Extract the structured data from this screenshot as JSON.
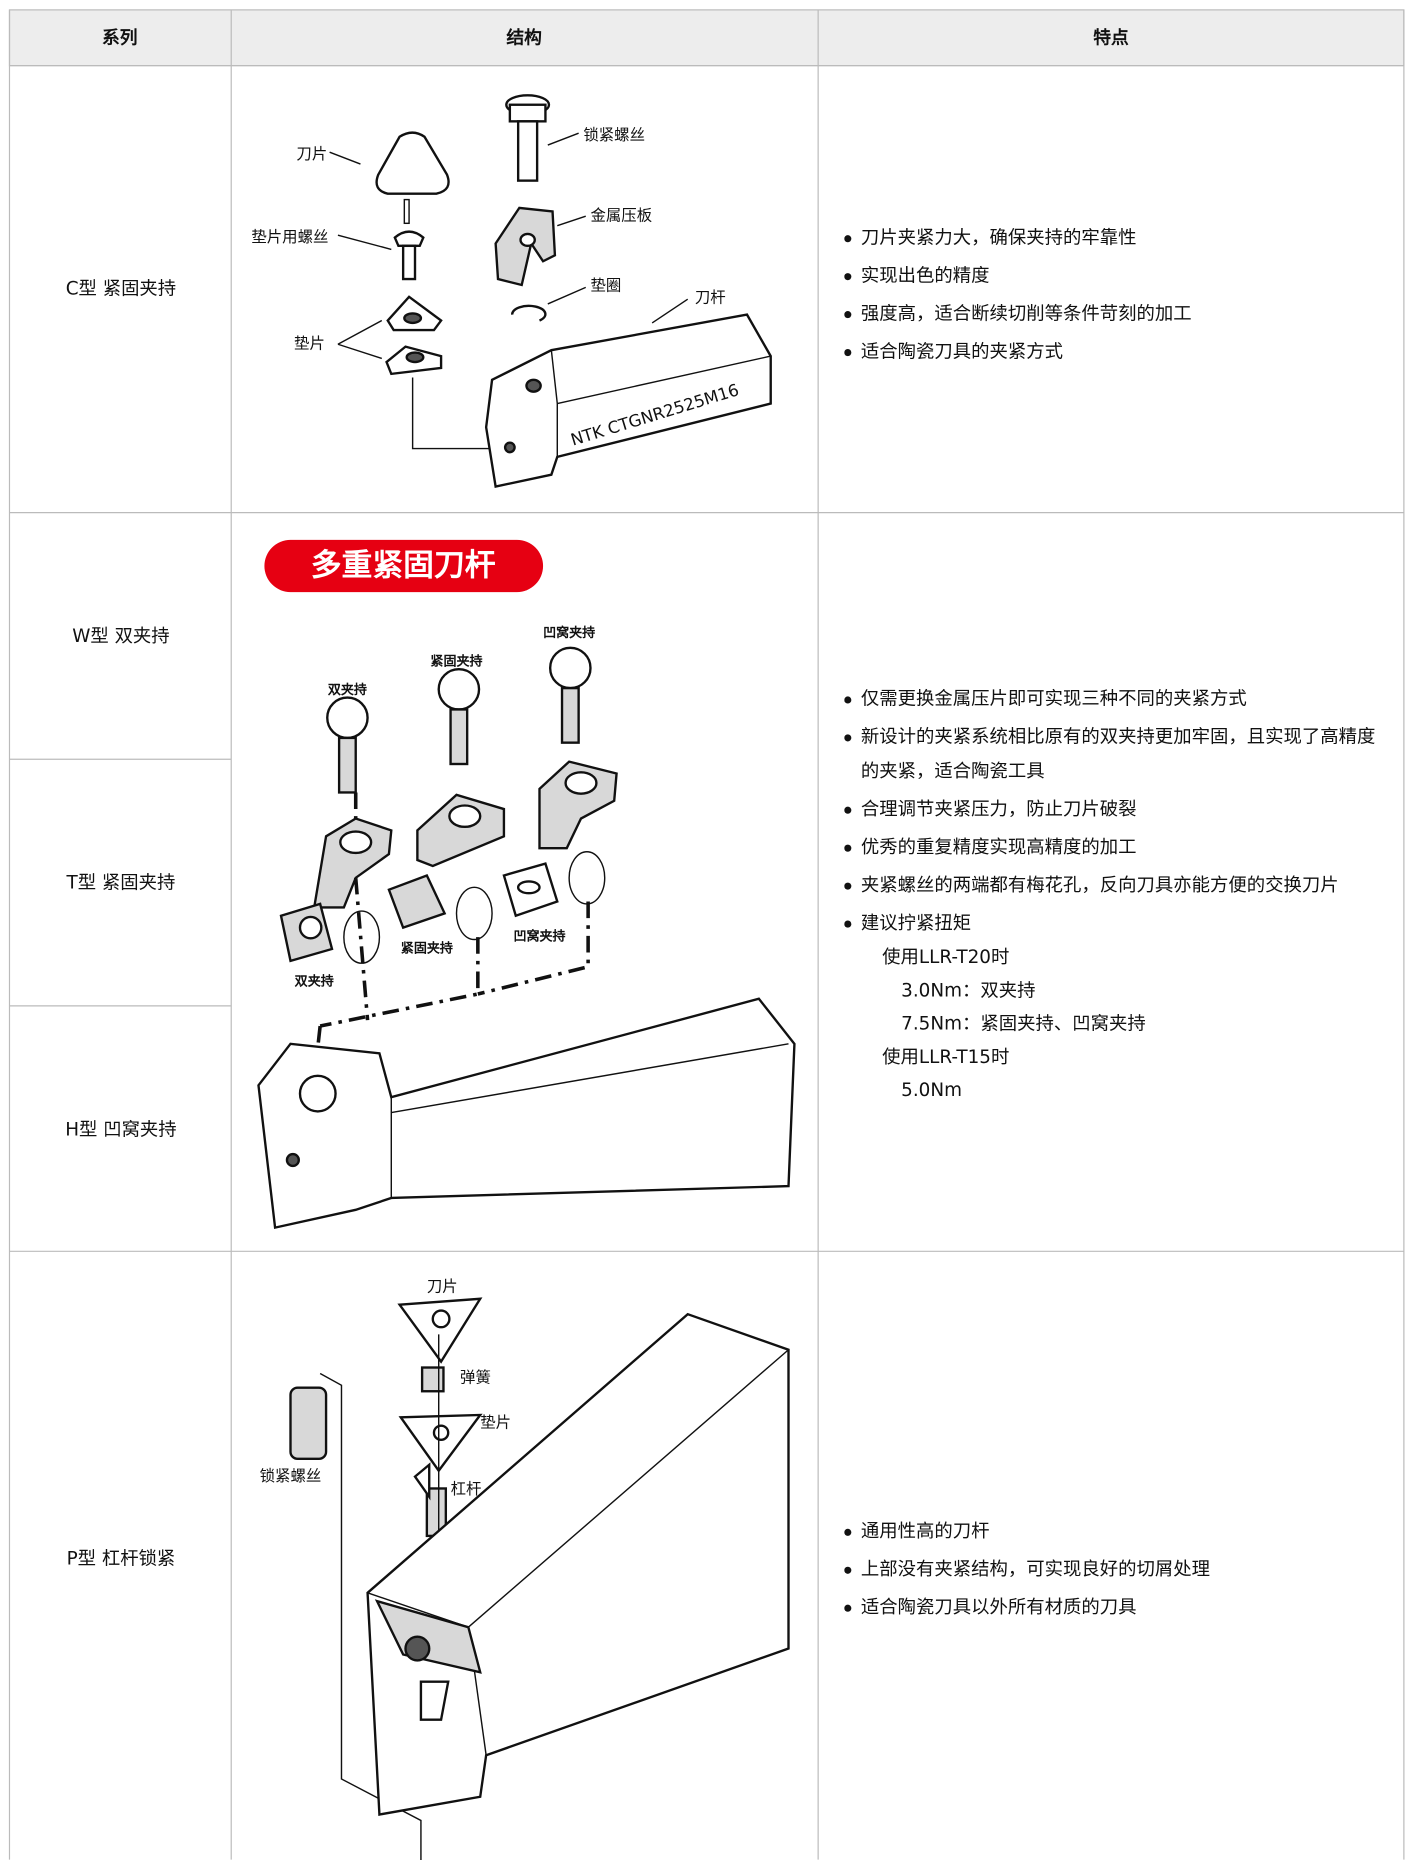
{
  "table": {
    "headers": [
      "系列",
      "结构",
      "特点"
    ],
    "rows": [
      {
        "series": [
          "C型 紧固夹持"
        ],
        "diagram": {
          "labels": [
            "刀片",
            "垫片用螺丝",
            "垫片",
            "锁紧螺丝",
            "金属压板",
            "垫圈",
            "刀杆"
          ],
          "marking": "NTK CTGNR2525M16"
        },
        "features": [
          "刀片夹紧力大，确保夹持的牢靠性",
          "实现出色的精度",
          "强度高，适合断续切削等条件苛刻的加工",
          "适合陶瓷刀具的夹紧方式"
        ]
      },
      {
        "series": [
          "W型 双夹持",
          "T型 紧固夹持",
          "H型 凹窝夹持"
        ],
        "diagram": {
          "badge": "多重紧固刀杆",
          "labels": [
            "双夹持",
            "紧固夹持",
            "凹窝夹持",
            "双夹持",
            "紧固夹持",
            "凹窝夹持"
          ]
        },
        "features": [
          "仅需更换金属压片即可实现三种不同的夹紧方式",
          "新设计的夹紧系统相比原有的双夹持更加牢固，且实现了高精度的夹紧，适合陶瓷工具",
          "合理调节夹紧压力，防止刀片破裂",
          "优秀的重复精度实现高精度的加工",
          "夹紧螺丝的两端都有梅花孔，反向刀具亦能方便的交换刀片"
        ],
        "torque": {
          "title": "建议拧紧扭矩",
          "groups": [
            {
              "tool": "使用LLR-T20时",
              "values": [
                "3.0Nm：双夹持",
                "7.5Nm：紧固夹持、凹窝夹持"
              ]
            },
            {
              "tool": "使用LLR-T15时",
              "values": [
                "5.0Nm"
              ]
            }
          ]
        }
      },
      {
        "series": [
          "P型 杠杆锁紧"
        ],
        "diagram": {
          "labels": [
            "刀片",
            "弹簧",
            "垫片",
            "杠杆",
            "锁紧螺丝"
          ]
        },
        "features": [
          "通用性高的刀杆",
          "上部没有夹紧结构，可实现良好的切屑处理",
          "适合陶瓷刀具以外所有材质的刀具"
        ]
      }
    ]
  }
}
